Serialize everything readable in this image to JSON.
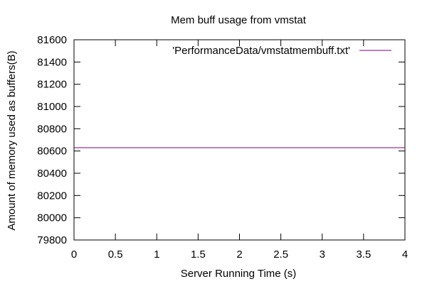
{
  "chart_data": {
    "type": "line",
    "title": "Mem buff usage from vmstat",
    "xlabel": "Server Running Time (s)",
    "ylabel": "Amount of memory used as buffers(B)",
    "xlim": [
      0,
      4
    ],
    "ylim": [
      79800,
      81600
    ],
    "xticks": [
      0,
      0.5,
      1,
      1.5,
      2,
      2.5,
      3,
      3.5,
      4
    ],
    "xtick_labels": [
      "0",
      "0.5",
      "1",
      "1.5",
      "2",
      "2.5",
      "3",
      "3.5",
      "4"
    ],
    "yticks": [
      79800,
      80000,
      80200,
      80400,
      80600,
      80800,
      81000,
      81200,
      81400,
      81600
    ],
    "ytick_labels": [
      "79800",
      "80000",
      "80200",
      "80400",
      "80600",
      "80800",
      "81000",
      "81200",
      "81400",
      "81600"
    ],
    "grid": false,
    "legend_position": "top-right",
    "series": [
      {
        "name": "'PerformanceData/vmstatmembuff.txt'",
        "color": "#800080",
        "x": [
          0,
          4
        ],
        "y": [
          80630,
          80630
        ]
      }
    ]
  }
}
